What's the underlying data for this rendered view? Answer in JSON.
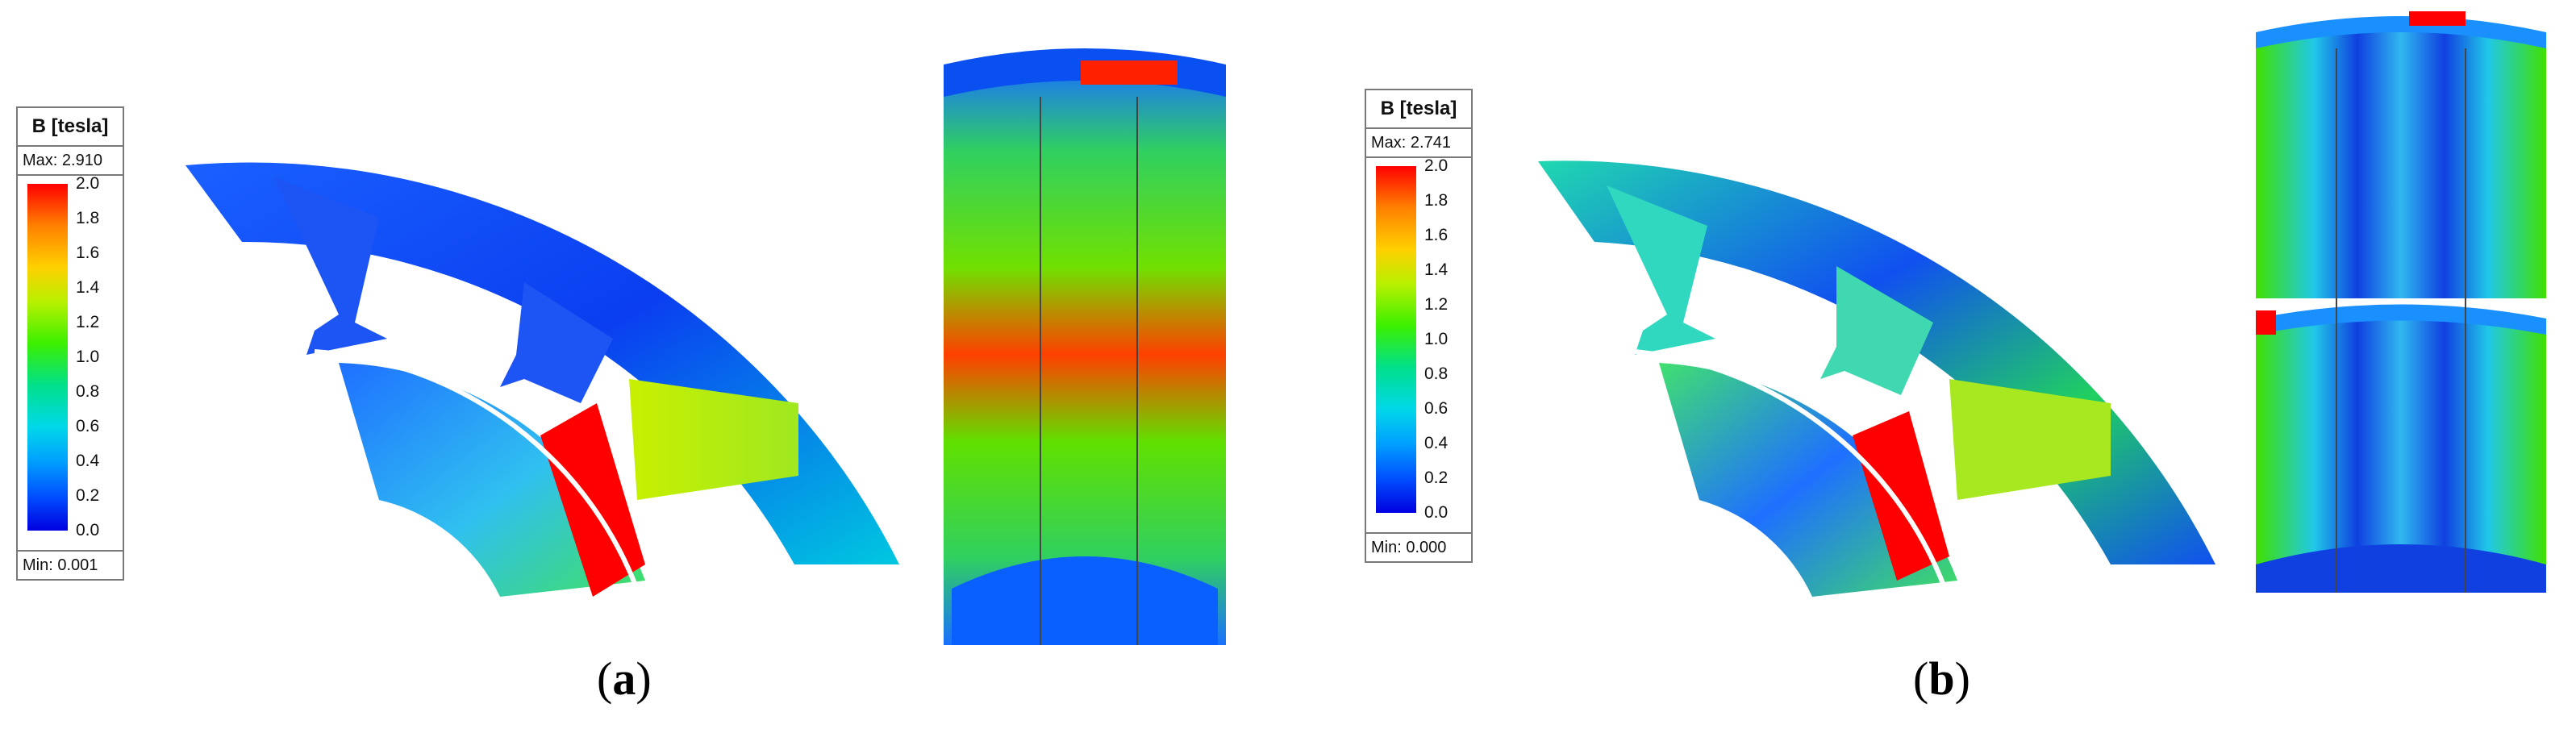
{
  "panels": [
    {
      "id": "a",
      "caption_label": "a",
      "legend": {
        "title": "B [tesla]",
        "max": "Max: 2.910",
        "min": "Min: 0.001",
        "ticks": [
          "2.0",
          "1.8",
          "1.6",
          "1.4",
          "1.2",
          "1.0",
          "0.8",
          "0.6",
          "0.4",
          "0.2",
          "0.0"
        ]
      }
    },
    {
      "id": "b",
      "caption_label": "b",
      "legend": {
        "title": "B [tesla]",
        "max": "Max: 2.741",
        "min": "Min: 0.000",
        "ticks": [
          "2.0",
          "1.8",
          "1.6",
          "1.4",
          "1.2",
          "1.0",
          "0.8",
          "0.6",
          "0.4",
          "0.2",
          "0.0"
        ]
      }
    }
  ],
  "colors": {
    "high": "#ff0000",
    "mid": "#3cf000",
    "low": "#0000e0"
  }
}
